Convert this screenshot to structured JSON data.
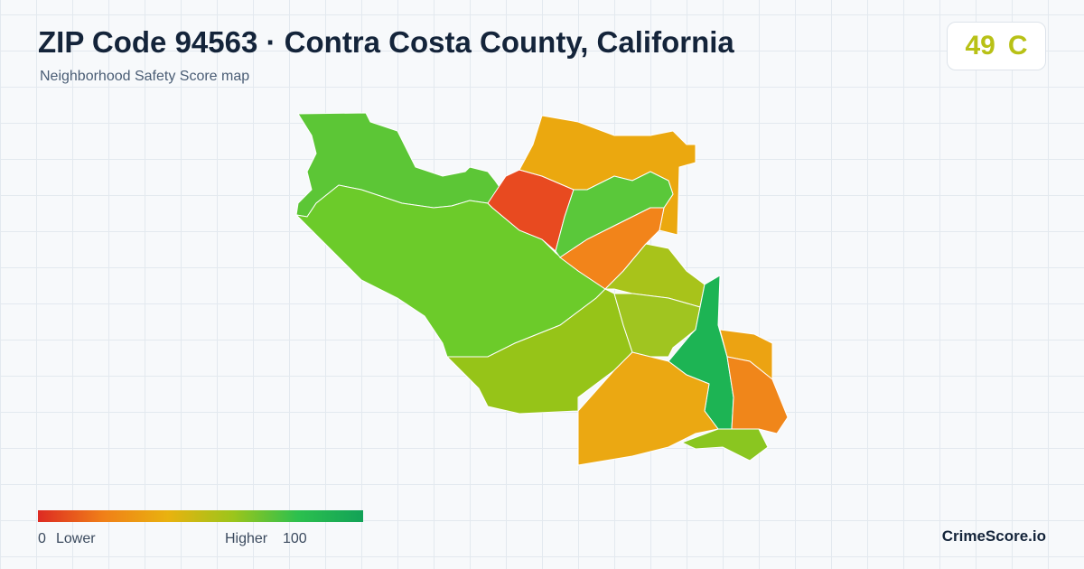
{
  "header": {
    "title": "ZIP Code 94563 · Contra Costa County, California",
    "subtitle": "Neighborhood Safety Score map"
  },
  "score": {
    "value": 49,
    "grade": "C"
  },
  "legend": {
    "min": 0,
    "min_label": "Lower",
    "max_label": "Higher",
    "max": 100
  },
  "brand": "CrimeScore.io"
}
